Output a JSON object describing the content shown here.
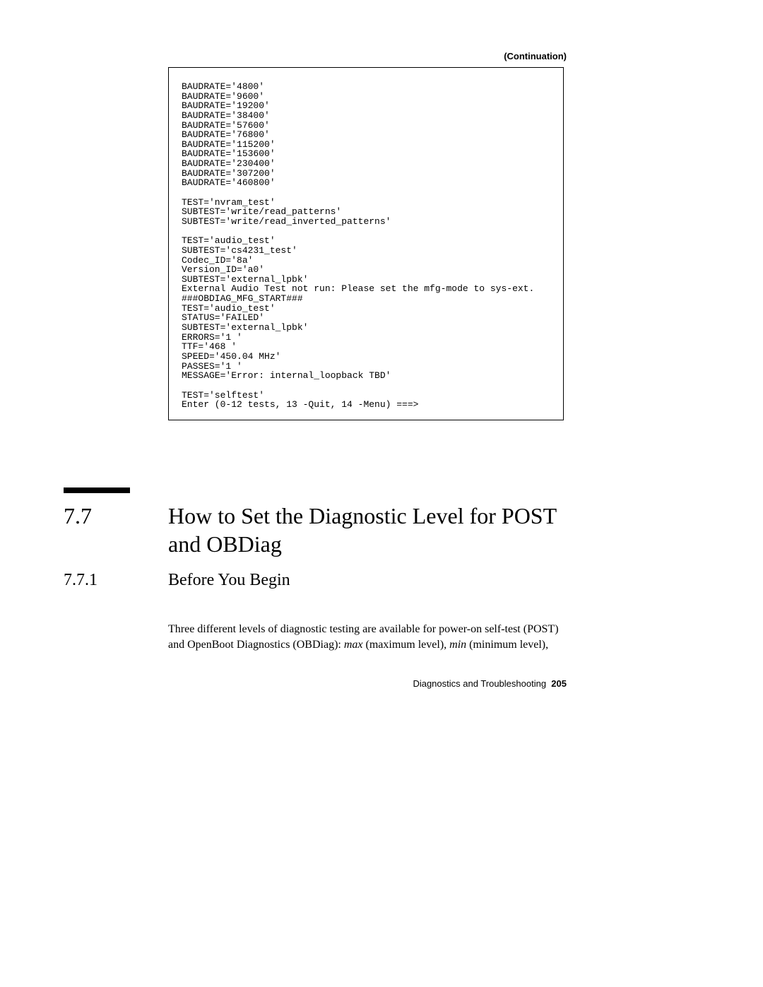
{
  "continuation_label": "(Continuation)",
  "code_lines": [
    "BAUDRATE='4800'",
    "BAUDRATE='9600'",
    "BAUDRATE='19200'",
    "BAUDRATE='38400'",
    "BAUDRATE='57600'",
    "BAUDRATE='76800'",
    "BAUDRATE='115200'",
    "BAUDRATE='153600'",
    "BAUDRATE='230400'",
    "BAUDRATE='307200'",
    "BAUDRATE='460800'",
    "",
    "TEST='nvram_test'",
    "SUBTEST='write/read_patterns'",
    "SUBTEST='write/read_inverted_patterns'",
    "",
    "TEST='audio_test'",
    "SUBTEST='cs4231_test'",
    "Codec_ID='8a'",
    "Version_ID='a0'",
    "SUBTEST='external_lpbk'",
    "External Audio Test not run: Please set the mfg-mode to sys-ext.",
    "###OBDIAG_MFG_START###",
    "TEST='audio_test'",
    "STATUS='FAILED'",
    "SUBTEST='external_lpbk'",
    "ERRORS='1 '",
    "TTF='468 '",
    "SPEED='450.04 MHz'",
    "PASSES='1 '",
    "MESSAGE='Error: internal_loopback TBD'",
    "",
    "TEST='selftest'",
    "Enter (0-12 tests, 13 -Quit, 14 -Menu) ===>"
  ],
  "section": {
    "number": "7.7",
    "title": "How to Set the Diagnostic Level for POST and OBDiag"
  },
  "subsection": {
    "number": "7.7.1",
    "title": "Before You Begin"
  },
  "paragraph": {
    "pre": "Three different levels of diagnostic testing are available for power-on self-test (POST) and OpenBoot Diagnostics (OBDiag): ",
    "max": "max",
    "mid1": " (maximum level), ",
    "min": "min",
    "mid2": " (minimum level),"
  },
  "footer": {
    "text": "Diagnostics and Troubleshooting",
    "page": "205"
  }
}
